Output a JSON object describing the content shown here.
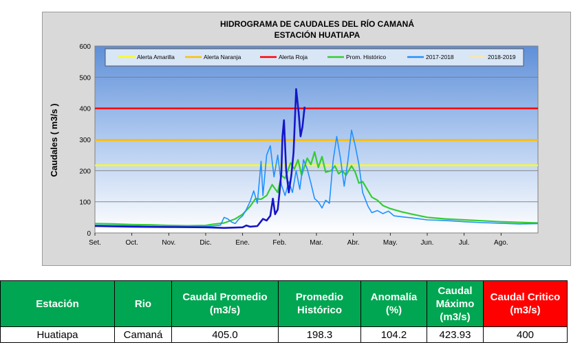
{
  "chart_data": {
    "type": "line",
    "title": "HIDROGRAMA DE CAUDALES DEL RÍO CAMANÁ",
    "subtitle": "ESTACIÓN HUATIAPA",
    "ylabel": "Caudales ( m3/s )",
    "xlabel": "",
    "ylim": [
      0,
      600
    ],
    "yticks": [
      0,
      100,
      200,
      300,
      400,
      500,
      600
    ],
    "x_categories": [
      "Set.",
      "Oct.",
      "Nov.",
      "Dic.",
      "Ene.",
      "Feb.",
      "Mar.",
      "Abr.",
      "May.",
      "Jun.",
      "Jul.",
      "Ago."
    ],
    "grid": true,
    "legend_position": "top",
    "series": [
      {
        "name": "Alerta Amarilla",
        "color": "#ffff00",
        "points": [
          [
            0,
            217
          ],
          [
            12,
            217
          ]
        ]
      },
      {
        "name": "Alerta Naranja",
        "color": "#ffc000",
        "points": [
          [
            0,
            298
          ],
          [
            12,
            298
          ]
        ]
      },
      {
        "name": "Alerta Roja",
        "color": "#ff0000",
        "points": [
          [
            0,
            400
          ],
          [
            12,
            400
          ]
        ]
      },
      {
        "name": "Prom. Histórico",
        "color": "#33cc33",
        "points": [
          [
            0,
            30
          ],
          [
            0.5,
            29
          ],
          [
            1,
            27
          ],
          [
            1.5,
            26
          ],
          [
            2,
            24
          ],
          [
            2.5,
            23
          ],
          [
            3,
            24
          ],
          [
            3.2,
            28
          ],
          [
            3.5,
            32
          ],
          [
            3.8,
            45
          ],
          [
            4,
            60
          ],
          [
            4.2,
            85
          ],
          [
            4.35,
            110
          ],
          [
            4.5,
            108
          ],
          [
            4.65,
            120
          ],
          [
            4.8,
            155
          ],
          [
            4.95,
            130
          ],
          [
            5.05,
            185
          ],
          [
            5.15,
            175
          ],
          [
            5.3,
            225
          ],
          [
            5.4,
            205
          ],
          [
            5.5,
            235
          ],
          [
            5.6,
            185
          ],
          [
            5.75,
            240
          ],
          [
            5.85,
            220
          ],
          [
            5.95,
            260
          ],
          [
            6.05,
            210
          ],
          [
            6.15,
            245
          ],
          [
            6.25,
            195
          ],
          [
            6.4,
            200
          ],
          [
            6.5,
            215
          ],
          [
            6.6,
            190
          ],
          [
            6.7,
            200
          ],
          [
            6.8,
            185
          ],
          [
            6.95,
            215
          ],
          [
            7.05,
            195
          ],
          [
            7.15,
            160
          ],
          [
            7.25,
            165
          ],
          [
            7.4,
            135
          ],
          [
            7.5,
            115
          ],
          [
            7.65,
            105
          ],
          [
            7.8,
            88
          ],
          [
            8,
            78
          ],
          [
            8.3,
            68
          ],
          [
            8.6,
            60
          ],
          [
            9,
            50
          ],
          [
            9.5,
            45
          ],
          [
            10,
            42
          ],
          [
            10.5,
            39
          ],
          [
            11,
            36
          ],
          [
            11.5,
            34
          ],
          [
            12,
            32
          ]
        ]
      },
      {
        "name": "2017-2018",
        "color": "#1e90ff",
        "points": [
          [
            0,
            25
          ],
          [
            1,
            23
          ],
          [
            2,
            20
          ],
          [
            3,
            20
          ],
          [
            3.4,
            25
          ],
          [
            3.5,
            50
          ],
          [
            3.6,
            45
          ],
          [
            3.7,
            35
          ],
          [
            3.8,
            30
          ],
          [
            3.9,
            45
          ],
          [
            4,
            55
          ],
          [
            4.1,
            75
          ],
          [
            4.2,
            100
          ],
          [
            4.3,
            135
          ],
          [
            4.4,
            95
          ],
          [
            4.5,
            230
          ],
          [
            4.55,
            120
          ],
          [
            4.65,
            250
          ],
          [
            4.75,
            280
          ],
          [
            4.85,
            180
          ],
          [
            4.95,
            250
          ],
          [
            5.05,
            155
          ],
          [
            5.15,
            120
          ],
          [
            5.25,
            165
          ],
          [
            5.35,
            130
          ],
          [
            5.45,
            200
          ],
          [
            5.55,
            140
          ],
          [
            5.65,
            235
          ],
          [
            5.75,
            205
          ],
          [
            5.85,
            160
          ],
          [
            5.95,
            110
          ],
          [
            6.05,
            100
          ],
          [
            6.15,
            80
          ],
          [
            6.25,
            105
          ],
          [
            6.35,
            95
          ],
          [
            6.45,
            230
          ],
          [
            6.55,
            310
          ],
          [
            6.65,
            240
          ],
          [
            6.75,
            150
          ],
          [
            6.85,
            230
          ],
          [
            6.95,
            330
          ],
          [
            7.05,
            280
          ],
          [
            7.15,
            220
          ],
          [
            7.25,
            130
          ],
          [
            7.4,
            85
          ],
          [
            7.5,
            65
          ],
          [
            7.65,
            72
          ],
          [
            7.8,
            62
          ],
          [
            7.95,
            70
          ],
          [
            8.1,
            55
          ],
          [
            8.3,
            52
          ],
          [
            8.6,
            48
          ],
          [
            9,
            42
          ],
          [
            9.5,
            40
          ],
          [
            10,
            36
          ],
          [
            10.5,
            33
          ],
          [
            11,
            31
          ],
          [
            11.5,
            29
          ],
          [
            12,
            30
          ]
        ]
      },
      {
        "name": "2018-2019",
        "color": "#1515c8",
        "points": [
          [
            0,
            22
          ],
          [
            1,
            20
          ],
          [
            2,
            19
          ],
          [
            3,
            18
          ],
          [
            3.5,
            16
          ],
          [
            4,
            18
          ],
          [
            4.1,
            24
          ],
          [
            4.2,
            20
          ],
          [
            4.4,
            22
          ],
          [
            4.55,
            45
          ],
          [
            4.65,
            40
          ],
          [
            4.75,
            55
          ],
          [
            4.82,
            110
          ],
          [
            4.88,
            60
          ],
          [
            4.95,
            75
          ],
          [
            5.0,
            130
          ],
          [
            5.05,
            195
          ],
          [
            5.08,
            310
          ],
          [
            5.12,
            362
          ],
          [
            5.18,
            200
          ],
          [
            5.25,
            130
          ],
          [
            5.32,
            185
          ],
          [
            5.38,
            258
          ],
          [
            5.45,
            462
          ],
          [
            5.52,
            385
          ],
          [
            5.57,
            310
          ],
          [
            5.62,
            340
          ],
          [
            5.68,
            405
          ]
        ]
      }
    ]
  },
  "table": {
    "headers": {
      "station": "Estación",
      "river": "Rio",
      "avg_flow": "Caudal Promedio (m3/s)",
      "hist_avg": "Promedio Histórico",
      "anomaly": "Anomalía (%)",
      "max_flow": "Caudal Máximo (m3/s)",
      "critical_flow": "Caudal Critico (m3/s)"
    },
    "row": {
      "station": "Huatiapa",
      "river": "Camaná",
      "avg_flow": "405.0",
      "hist_avg": "198.3",
      "anomaly": "104.2",
      "max_flow": "423.93",
      "critical_flow": "400"
    },
    "header_color": "#00a651",
    "critical_header_color": "#ff0000"
  }
}
